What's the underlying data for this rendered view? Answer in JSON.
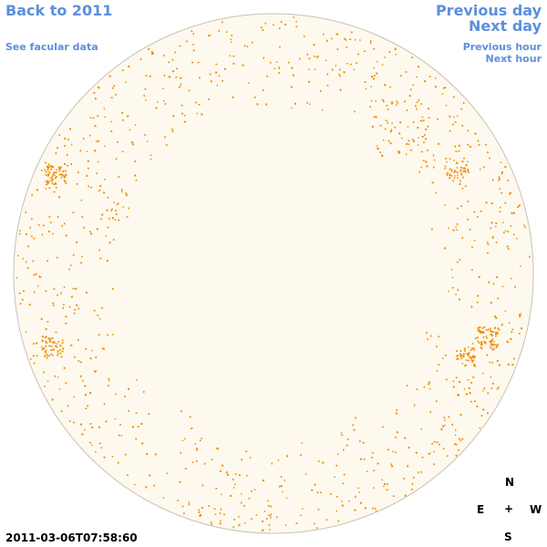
{
  "nav": {
    "back_label": "Back to 2011",
    "facular_label": "See facular data",
    "prev_day_label": "Previous day",
    "next_day_label": "Next day",
    "prev_hour_label": "Previous hour",
    "next_hour_label": "Next hour"
  },
  "compass": {
    "north": "N",
    "south": "S",
    "east": "E",
    "west": "W",
    "center": "+"
  },
  "timestamp": "2011-03-06T07:58:60",
  "colors": {
    "disk_fill": "#fdf9ee",
    "disk_edge": "#c8c2b4",
    "facula": "#f08c00",
    "link": "#5b8fdc"
  }
}
